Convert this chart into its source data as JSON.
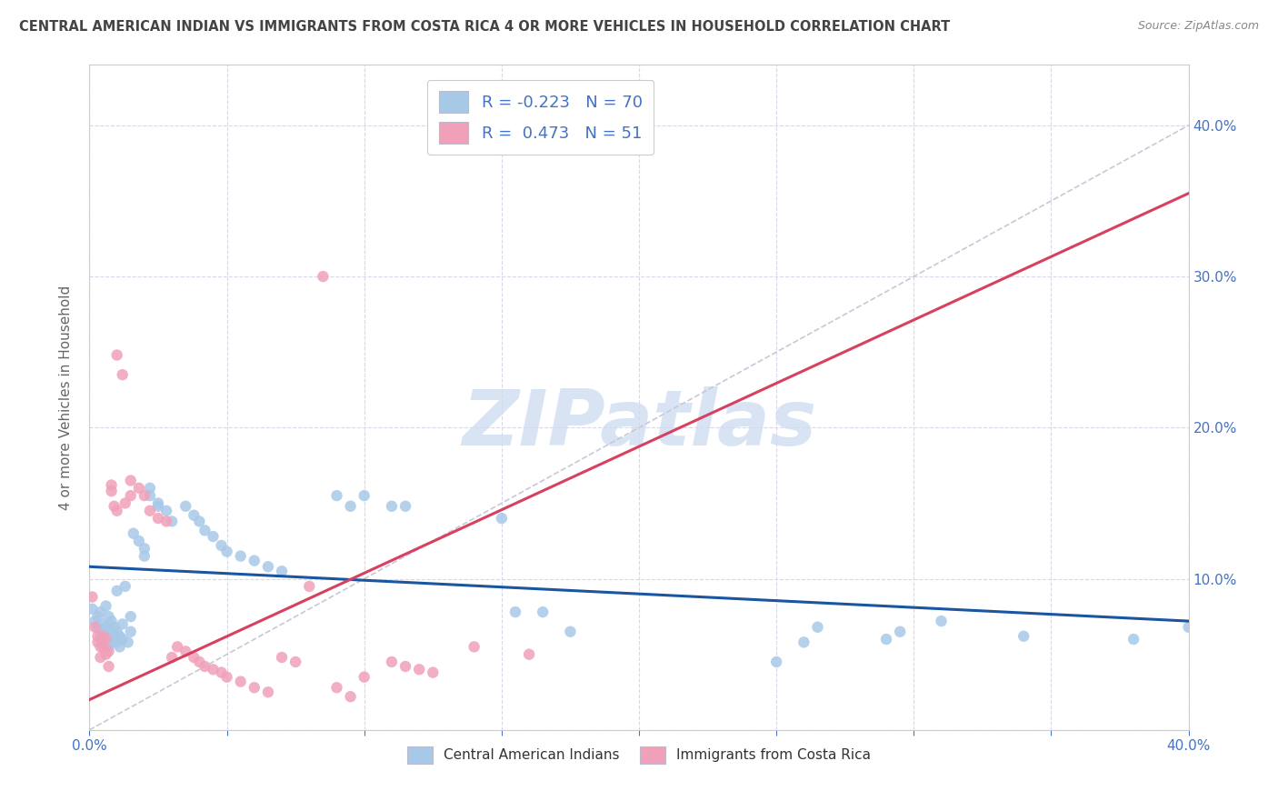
{
  "title": "CENTRAL AMERICAN INDIAN VS IMMIGRANTS FROM COSTA RICA 4 OR MORE VEHICLES IN HOUSEHOLD CORRELATION CHART",
  "source": "Source: ZipAtlas.com",
  "ylabel": "4 or more Vehicles in Household",
  "xlim": [
    0.0,
    0.4
  ],
  "ylim": [
    0.0,
    0.44
  ],
  "blue_color": "#a8c8e8",
  "pink_color": "#f0a0b8",
  "blue_line_color": "#1a56a0",
  "pink_line_color": "#d84060",
  "diag_color": "#c8c8d8",
  "blue_trend_x": [
    0.0,
    0.4
  ],
  "blue_trend_y": [
    0.108,
    0.072
  ],
  "pink_trend_x": [
    0.0,
    0.4
  ],
  "pink_trend_y": [
    0.02,
    0.355
  ],
  "blue_scatter": [
    [
      0.001,
      0.08
    ],
    [
      0.002,
      0.072
    ],
    [
      0.003,
      0.068
    ],
    [
      0.003,
      0.075
    ],
    [
      0.004,
      0.062
    ],
    [
      0.004,
      0.078
    ],
    [
      0.005,
      0.058
    ],
    [
      0.005,
      0.065
    ],
    [
      0.005,
      0.07
    ],
    [
      0.006,
      0.06
    ],
    [
      0.006,
      0.068
    ],
    [
      0.006,
      0.082
    ],
    [
      0.007,
      0.055
    ],
    [
      0.007,
      0.062
    ],
    [
      0.007,
      0.075
    ],
    [
      0.008,
      0.058
    ],
    [
      0.008,
      0.065
    ],
    [
      0.008,
      0.072
    ],
    [
      0.009,
      0.06
    ],
    [
      0.009,
      0.068
    ],
    [
      0.01,
      0.058
    ],
    [
      0.01,
      0.065
    ],
    [
      0.01,
      0.092
    ],
    [
      0.011,
      0.055
    ],
    [
      0.011,
      0.062
    ],
    [
      0.012,
      0.06
    ],
    [
      0.012,
      0.07
    ],
    [
      0.013,
      0.095
    ],
    [
      0.014,
      0.058
    ],
    [
      0.015,
      0.065
    ],
    [
      0.015,
      0.075
    ],
    [
      0.016,
      0.13
    ],
    [
      0.018,
      0.125
    ],
    [
      0.02,
      0.115
    ],
    [
      0.02,
      0.12
    ],
    [
      0.022,
      0.155
    ],
    [
      0.022,
      0.16
    ],
    [
      0.025,
      0.15
    ],
    [
      0.025,
      0.148
    ],
    [
      0.028,
      0.145
    ],
    [
      0.03,
      0.138
    ],
    [
      0.035,
      0.148
    ],
    [
      0.038,
      0.142
    ],
    [
      0.04,
      0.138
    ],
    [
      0.042,
      0.132
    ],
    [
      0.045,
      0.128
    ],
    [
      0.048,
      0.122
    ],
    [
      0.05,
      0.118
    ],
    [
      0.055,
      0.115
    ],
    [
      0.06,
      0.112
    ],
    [
      0.065,
      0.108
    ],
    [
      0.07,
      0.105
    ],
    [
      0.09,
      0.155
    ],
    [
      0.095,
      0.148
    ],
    [
      0.1,
      0.155
    ],
    [
      0.11,
      0.148
    ],
    [
      0.115,
      0.148
    ],
    [
      0.15,
      0.14
    ],
    [
      0.155,
      0.078
    ],
    [
      0.165,
      0.078
    ],
    [
      0.175,
      0.065
    ],
    [
      0.25,
      0.045
    ],
    [
      0.26,
      0.058
    ],
    [
      0.265,
      0.068
    ],
    [
      0.29,
      0.06
    ],
    [
      0.295,
      0.065
    ],
    [
      0.31,
      0.072
    ],
    [
      0.34,
      0.062
    ],
    [
      0.38,
      0.06
    ],
    [
      0.4,
      0.068
    ]
  ],
  "pink_scatter": [
    [
      0.001,
      0.088
    ],
    [
      0.002,
      0.068
    ],
    [
      0.003,
      0.058
    ],
    [
      0.003,
      0.062
    ],
    [
      0.004,
      0.048
    ],
    [
      0.004,
      0.055
    ],
    [
      0.005,
      0.055
    ],
    [
      0.005,
      0.062
    ],
    [
      0.006,
      0.05
    ],
    [
      0.006,
      0.06
    ],
    [
      0.007,
      0.042
    ],
    [
      0.007,
      0.052
    ],
    [
      0.008,
      0.158
    ],
    [
      0.008,
      0.162
    ],
    [
      0.009,
      0.148
    ],
    [
      0.01,
      0.145
    ],
    [
      0.01,
      0.248
    ],
    [
      0.012,
      0.235
    ],
    [
      0.013,
      0.15
    ],
    [
      0.015,
      0.155
    ],
    [
      0.015,
      0.165
    ],
    [
      0.018,
      0.16
    ],
    [
      0.02,
      0.155
    ],
    [
      0.022,
      0.145
    ],
    [
      0.025,
      0.14
    ],
    [
      0.028,
      0.138
    ],
    [
      0.03,
      0.048
    ],
    [
      0.032,
      0.055
    ],
    [
      0.035,
      0.052
    ],
    [
      0.038,
      0.048
    ],
    [
      0.04,
      0.045
    ],
    [
      0.042,
      0.042
    ],
    [
      0.045,
      0.04
    ],
    [
      0.048,
      0.038
    ],
    [
      0.05,
      0.035
    ],
    [
      0.055,
      0.032
    ],
    [
      0.06,
      0.028
    ],
    [
      0.065,
      0.025
    ],
    [
      0.07,
      0.048
    ],
    [
      0.075,
      0.045
    ],
    [
      0.08,
      0.095
    ],
    [
      0.085,
      0.3
    ],
    [
      0.09,
      0.028
    ],
    [
      0.095,
      0.022
    ],
    [
      0.1,
      0.035
    ],
    [
      0.11,
      0.045
    ],
    [
      0.115,
      0.042
    ],
    [
      0.12,
      0.04
    ],
    [
      0.125,
      0.038
    ],
    [
      0.14,
      0.055
    ],
    [
      0.16,
      0.05
    ]
  ],
  "watermark": "ZIPatlas",
  "bg_color": "#ffffff",
  "grid_color": "#d8d8e8",
  "title_color": "#444444",
  "axis_color": "#4472c4",
  "scatter_size": 80,
  "legend_r1": "R = -0.223",
  "legend_n1": "N = 70",
  "legend_r2": "R =  0.473",
  "legend_n2": "N = 51",
  "bottom_label1": "Central American Indians",
  "bottom_label2": "Immigrants from Costa Rica"
}
